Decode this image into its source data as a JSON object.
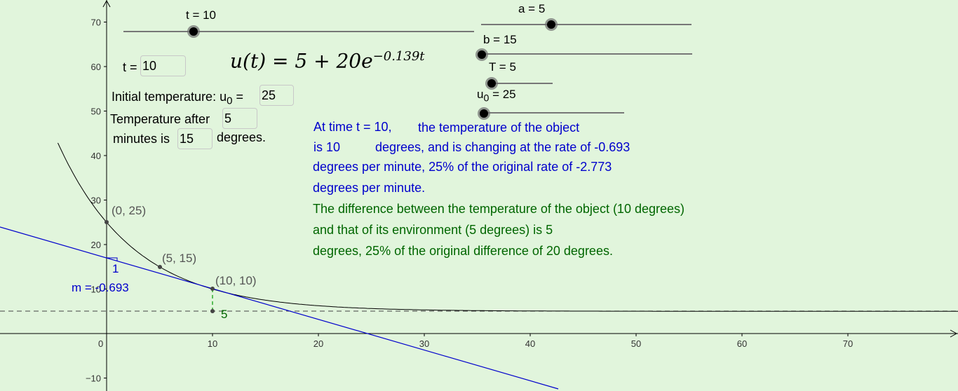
{
  "axes": {
    "x_ticks": [
      "10",
      "20",
      "30",
      "40",
      "50",
      "60",
      "70"
    ],
    "y_ticks": [
      "70",
      "60",
      "50",
      "40",
      "30",
      "20",
      "10",
      "−10"
    ],
    "origin_label": "0"
  },
  "points": {
    "p0": "(0, 25)",
    "p5": "(5, 15)",
    "p10": "(10, 10)"
  },
  "slope": {
    "run_label": "1",
    "m_label": "m = -0.693"
  },
  "vertical_gap_label": "5",
  "sliders": {
    "t": {
      "label": "t = 10",
      "value": 10,
      "min": 0,
      "max": 50
    },
    "a": {
      "label": "a = 5",
      "value": 5,
      "min": -5,
      "max": 25
    },
    "b": {
      "label": "b = 15",
      "value": 15,
      "min": 15,
      "max": 45
    },
    "T": {
      "label": "T = 5",
      "value": 5,
      "min": 5,
      "max": 25
    },
    "u0": {
      "label_main": "u",
      "label_sub": "0",
      "label_rest": " = 25",
      "value": 25,
      "min": 25,
      "max": 90
    }
  },
  "inputs": {
    "t_label": "t =",
    "t_value": "10",
    "u0_label_prefix": "Initial temperature: u",
    "u0_label_sub": "0",
    "u0_label_suffix": " =",
    "u0_value": "25",
    "temp_after_prefix": "Temperature after",
    "temp_after_value": "5",
    "minutes_is": "minutes is",
    "minutes_value": "15",
    "degrees": "degrees."
  },
  "formula": {
    "lhs": "u(t) = 5 + 20e",
    "exponent": "−0.139t"
  },
  "info_blue": {
    "line1a": "At time t = 10,",
    "line1b": "the temperature of the object",
    "line2a": "is 10",
    "line2b": "degrees, and is changing at the rate of -0.693",
    "line3": "degrees per minute, 25% of the original rate of -2.773",
    "line4": "degrees per minute."
  },
  "info_green": {
    "line1": "The difference between the temperature of the object (10 degrees)",
    "line2": "and that of its environment (5 degrees) is 5",
    "line3": "degrees, 25% of the original difference of 20 degrees."
  },
  "colors": {
    "background": "#e1f5dc",
    "tangent": "#0000cc",
    "gap": "#009900",
    "curve": "#000000"
  }
}
